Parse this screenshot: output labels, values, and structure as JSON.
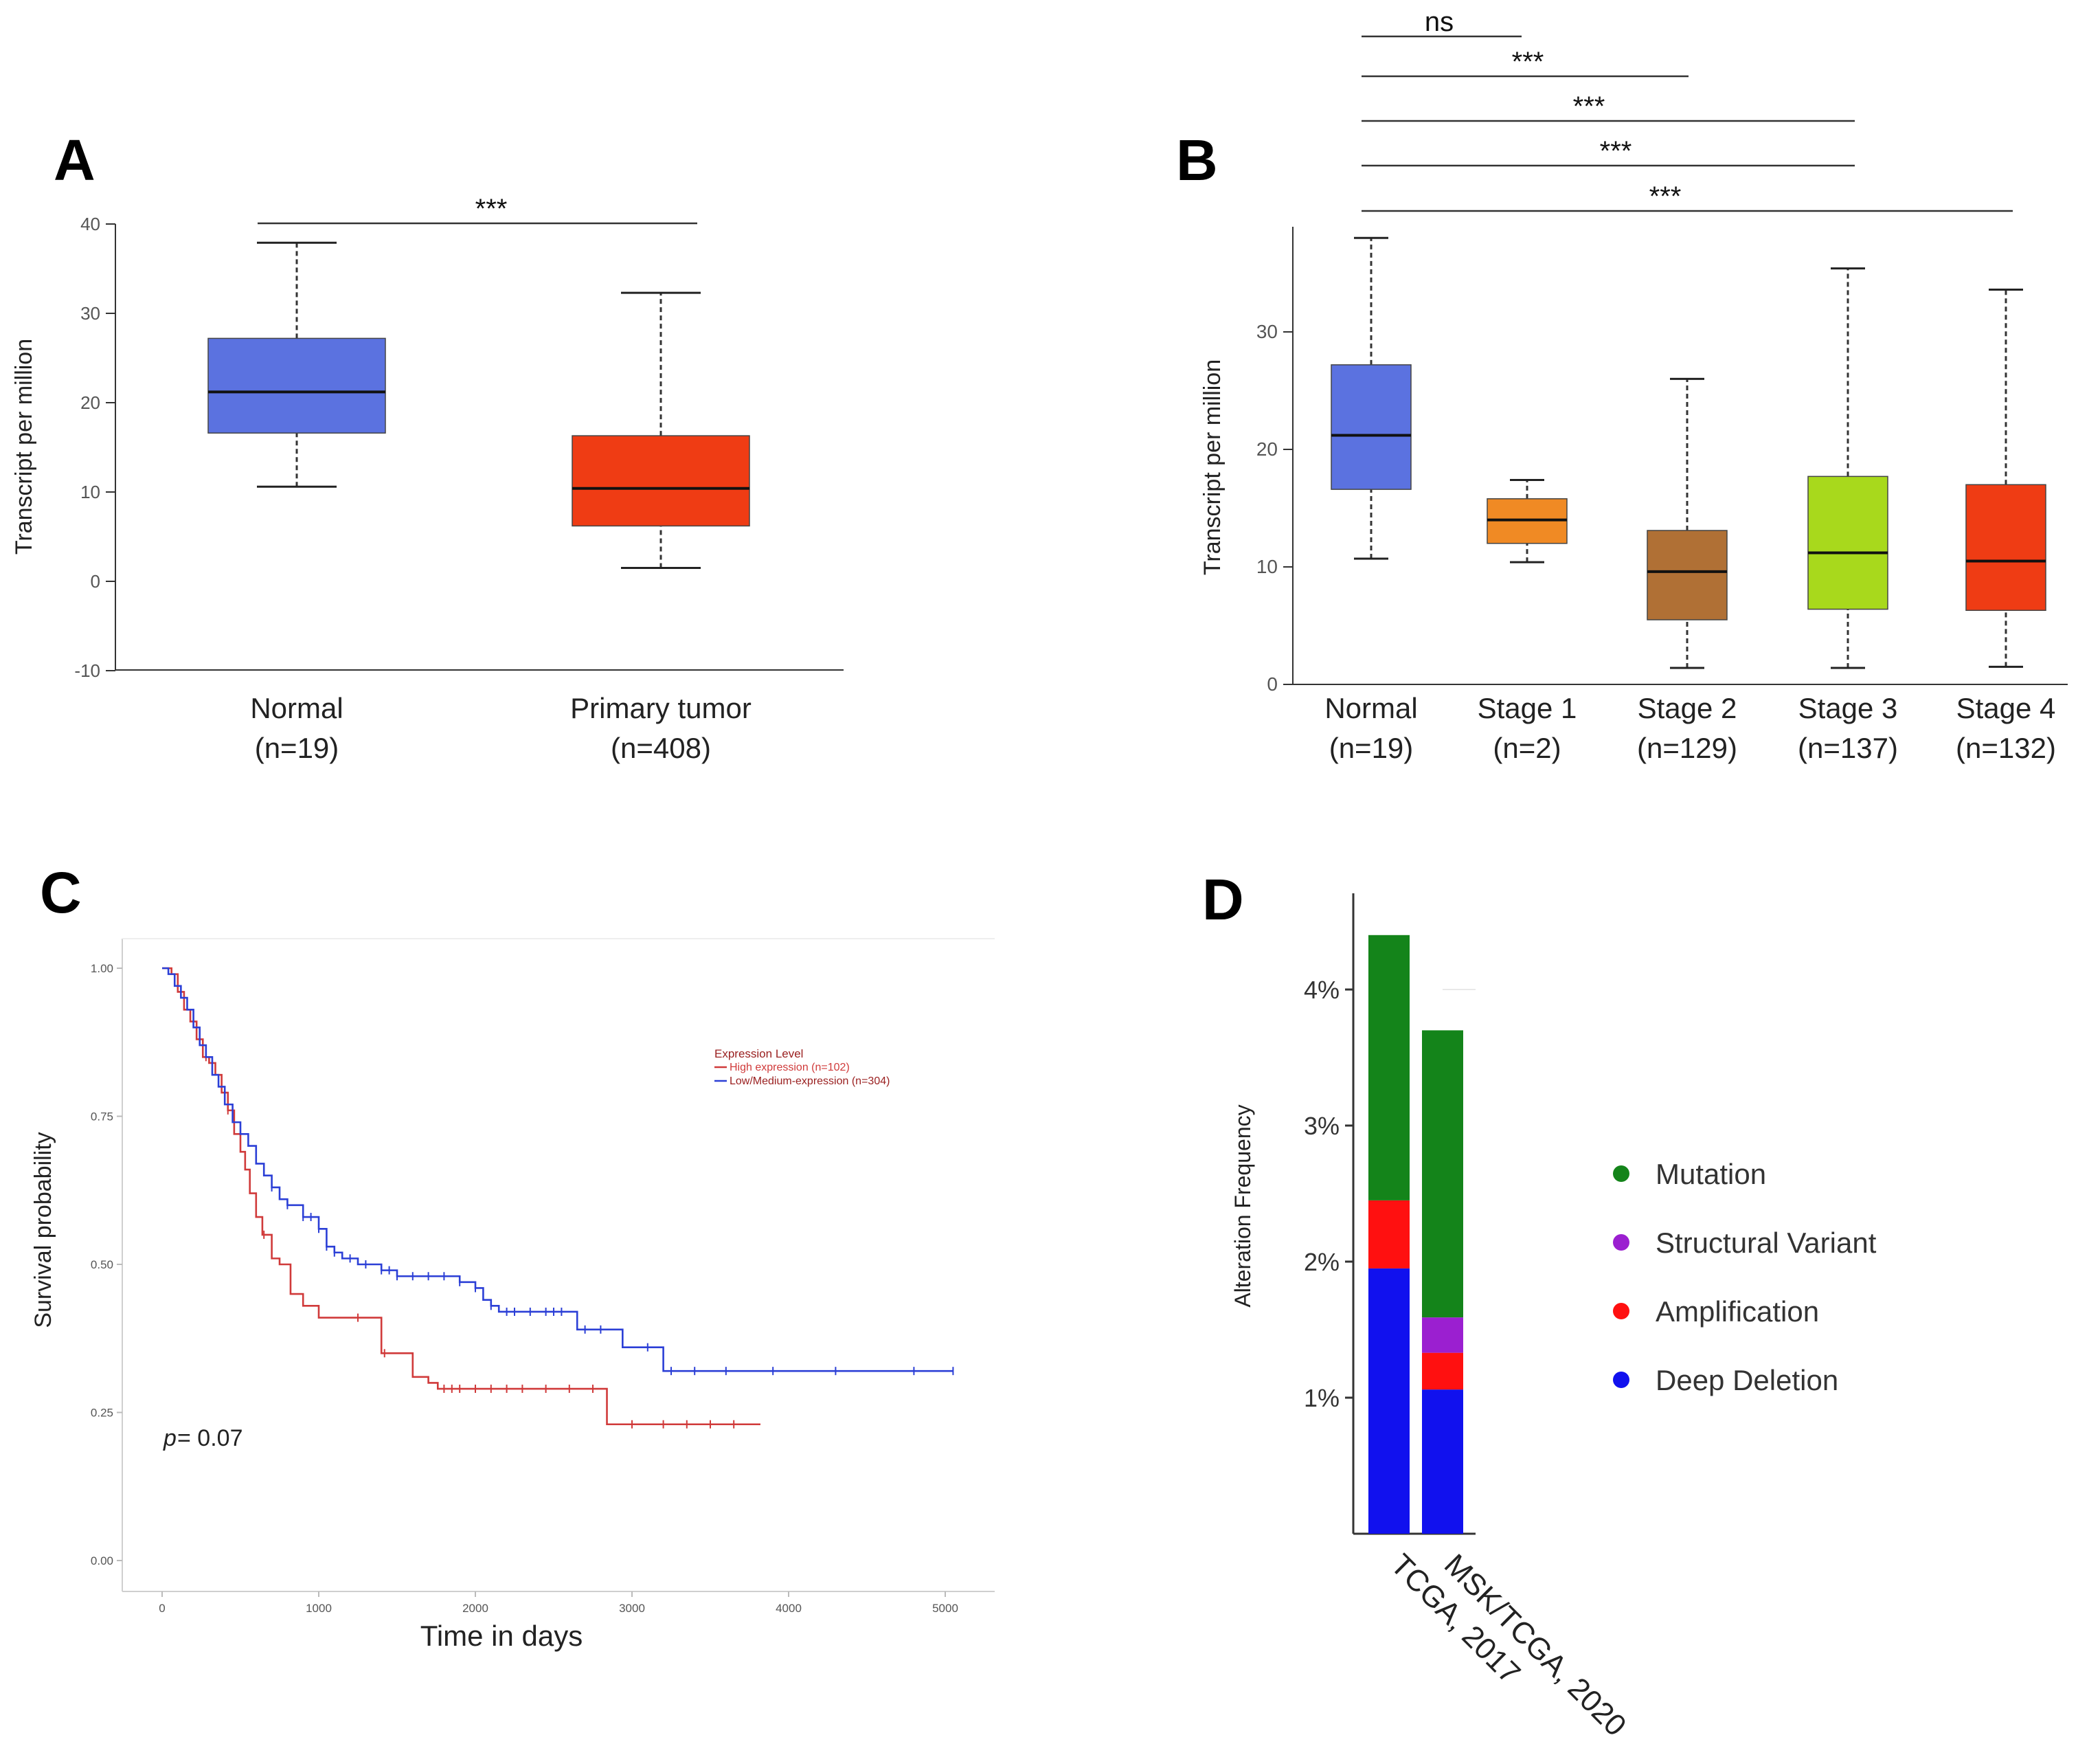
{
  "chart_data": [
    {
      "panel": "A",
      "type": "box",
      "ylabel": "Transcript per million",
      "ylim": [
        -10,
        40
      ],
      "yticks": [
        -10,
        0,
        10,
        20,
        30,
        40
      ],
      "categories": [
        "Normal",
        "Primary tumor"
      ],
      "sample_sizes": [
        "(n=19)",
        "(n=408)"
      ],
      "colors": [
        "#5b72e0",
        "#ef3c14"
      ],
      "boxes": [
        {
          "min": 10.6,
          "q1": 16.6,
          "median": 21.2,
          "q3": 27.2,
          "max": 37.9
        },
        {
          "min": 1.5,
          "q1": 6.2,
          "median": 10.4,
          "q3": 16.3,
          "max": 32.3
        }
      ],
      "significance": [
        {
          "from": 0,
          "to": 1,
          "label": "***"
        }
      ]
    },
    {
      "panel": "B",
      "type": "box",
      "ylabel": "Transcript per million",
      "ylim": [
        0,
        39
      ],
      "yticks": [
        0,
        10,
        20,
        30
      ],
      "categories": [
        "Normal",
        "Stage 1",
        "Stage 2",
        "Stage 3",
        "Stage 4"
      ],
      "sample_sizes": [
        "(n=19)",
        "(n=2)",
        "(n=129)",
        "(n=137)",
        "(n=132)"
      ],
      "colors": [
        "#5b72e0",
        "#f08a24",
        "#b07035",
        "#a8d91c",
        "#ef3c14"
      ],
      "boxes": [
        {
          "min": 10.7,
          "q1": 16.6,
          "median": 21.2,
          "q3": 27.2,
          "max": 38.0
        },
        {
          "min": 10.4,
          "q1": 12.0,
          "median": 14.0,
          "q3": 15.8,
          "max": 17.4
        },
        {
          "min": 1.4,
          "q1": 5.5,
          "median": 9.6,
          "q3": 13.1,
          "max": 26.0
        },
        {
          "min": 1.4,
          "q1": 6.4,
          "median": 11.2,
          "q3": 17.7,
          "max": 35.4
        },
        {
          "min": 1.5,
          "q1": 6.3,
          "median": 10.5,
          "q3": 17.0,
          "max": 33.6
        }
      ],
      "significance": [
        {
          "from": 0,
          "to": 1,
          "label": "ns"
        },
        {
          "from": 0,
          "to": 2,
          "label": "***"
        },
        {
          "from": 0,
          "to": 3,
          "label": "***"
        },
        {
          "from": 0,
          "to": 3,
          "label": "***"
        },
        {
          "from": 0,
          "to": 4,
          "label": "***"
        }
      ]
    },
    {
      "panel": "C",
      "type": "line",
      "subtype": "kaplan-meier",
      "xlabel": "Time in days",
      "ylabel": "Survival probability",
      "xlim": [
        -250,
        5300
      ],
      "ylim": [
        -0.03,
        1.05
      ],
      "xticks": [
        0,
        1000,
        2000,
        3000,
        4000,
        5000
      ],
      "yticks": [
        "0.00",
        "0.25",
        "0.50",
        "0.75",
        "1.00"
      ],
      "legend_title": "Expression Level",
      "annotation_p": "p",
      "annotation_value": " = 0.07",
      "series": [
        {
          "name": "High expression (n=102)",
          "color": "#d03a3a",
          "steps": [
            [
              0,
              1.0
            ],
            [
              60,
              0.99
            ],
            [
              100,
              0.96
            ],
            [
              140,
              0.93
            ],
            [
              180,
              0.91
            ],
            [
              220,
              0.88
            ],
            [
              260,
              0.85
            ],
            [
              300,
              0.84
            ],
            [
              340,
              0.82
            ],
            [
              380,
              0.79
            ],
            [
              420,
              0.76
            ],
            [
              460,
              0.72
            ],
            [
              500,
              0.69
            ],
            [
              530,
              0.66
            ],
            [
              560,
              0.62
            ],
            [
              600,
              0.58
            ],
            [
              640,
              0.55
            ],
            [
              700,
              0.51
            ],
            [
              750,
              0.5
            ],
            [
              820,
              0.45
            ],
            [
              900,
              0.43
            ],
            [
              1000,
              0.41
            ],
            [
              1100,
              0.41
            ],
            [
              1400,
              0.4
            ],
            [
              1400,
              0.35
            ],
            [
              1500,
              0.35
            ],
            [
              1600,
              0.31
            ],
            [
              1700,
              0.3
            ],
            [
              1760,
              0.29
            ],
            [
              2840,
              0.29
            ],
            [
              2840,
              0.23
            ],
            [
              3820,
              0.23
            ]
          ],
          "censors": [
            280,
            420,
            650,
            1250,
            1420,
            1800,
            1850,
            1900,
            2000,
            2100,
            2200,
            2300,
            2450,
            2600,
            2750,
            3000,
            3200,
            3350,
            3500,
            3650
          ]
        },
        {
          "name": "Low/Medium-expression (n=304)",
          "color": "#2b3fd6",
          "steps": [
            [
              0,
              1.0
            ],
            [
              40,
              0.99
            ],
            [
              80,
              0.97
            ],
            [
              120,
              0.95
            ],
            [
              160,
              0.93
            ],
            [
              200,
              0.9
            ],
            [
              240,
              0.87
            ],
            [
              280,
              0.85
            ],
            [
              320,
              0.82
            ],
            [
              360,
              0.8
            ],
            [
              400,
              0.77
            ],
            [
              450,
              0.74
            ],
            [
              500,
              0.72
            ],
            [
              550,
              0.7
            ],
            [
              600,
              0.67
            ],
            [
              650,
              0.65
            ],
            [
              700,
              0.63
            ],
            [
              750,
              0.61
            ],
            [
              800,
              0.6
            ],
            [
              900,
              0.58
            ],
            [
              1000,
              0.56
            ],
            [
              1050,
              0.53
            ],
            [
              1100,
              0.52
            ],
            [
              1150,
              0.51
            ],
            [
              1250,
              0.5
            ],
            [
              1400,
              0.49
            ],
            [
              1500,
              0.48
            ],
            [
              1700,
              0.48
            ],
            [
              1900,
              0.47
            ],
            [
              2000,
              0.46
            ],
            [
              2050,
              0.44
            ],
            [
              2100,
              0.43
            ],
            [
              2150,
              0.42
            ],
            [
              2400,
              0.42
            ],
            [
              2600,
              0.42
            ],
            [
              2650,
              0.39
            ],
            [
              2900,
              0.39
            ],
            [
              2940,
              0.36
            ],
            [
              3200,
              0.36
            ],
            [
              3200,
              0.32
            ],
            [
              5050,
              0.32
            ]
          ],
          "censors": [
            700,
            800,
            900,
            950,
            1000,
            1050,
            1100,
            1200,
            1300,
            1400,
            1450,
            1500,
            1600,
            1700,
            1800,
            1900,
            2000,
            2100,
            2200,
            2250,
            2350,
            2450,
            2500,
            2550,
            2700,
            2800,
            3100,
            3250,
            3400,
            3600,
            3900,
            4300,
            4800,
            5050
          ]
        }
      ]
    },
    {
      "panel": "D",
      "type": "bar",
      "stacked": true,
      "ylabel": "Alteration Frequency",
      "ylim": [
        0,
        4.6
      ],
      "yticks": [
        "1%",
        "2%",
        "3%",
        "4%"
      ],
      "categories": [
        "TCGA, 2017",
        "MSK/TCGA, 2020"
      ],
      "series": [
        {
          "name": "Deep Deletion",
          "color": "#1111ee",
          "values": [
            1.95,
            1.06
          ]
        },
        {
          "name": "Amplification",
          "color": "#ff1010",
          "values": [
            0.5,
            0.27
          ]
        },
        {
          "name": "Structural Variant",
          "color": "#9b1fd0",
          "values": [
            0.0,
            0.26
          ]
        },
        {
          "name": "Mutation",
          "color": "#14841a",
          "values": [
            1.95,
            2.11
          ]
        }
      ],
      "legend": [
        {
          "name": "Mutation",
          "color": "#14841a"
        },
        {
          "name": "Structural Variant",
          "color": "#9b1fd0"
        },
        {
          "name": "Amplification",
          "color": "#ff1010"
        },
        {
          "name": "Deep Deletion",
          "color": "#1111ee"
        }
      ]
    }
  ],
  "panel_labels": [
    "A",
    "B",
    "C",
    "D"
  ]
}
